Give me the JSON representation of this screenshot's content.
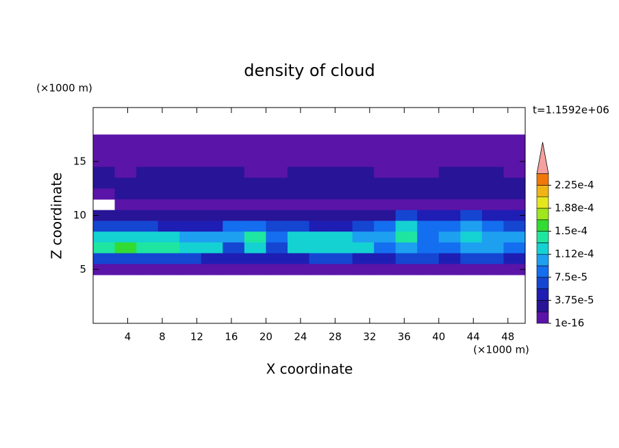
{
  "chart_data": {
    "type": "contour",
    "title": "density of cloud",
    "xlabel": "X coordinate",
    "ylabel": "Z coordinate",
    "xunit": "(×1000 m)",
    "yunit": "(×1000 m)",
    "annotation": "t=1.1592e+06",
    "xlim": [
      0,
      50
    ],
    "ylim": [
      0,
      20
    ],
    "xticks": [
      4,
      8,
      12,
      16,
      20,
      24,
      28,
      32,
      36,
      40,
      44,
      48
    ],
    "yticks": [
      5,
      10,
      15
    ],
    "x": [
      1.25,
      3.75,
      6.25,
      8.75,
      11.25,
      13.75,
      16.25,
      18.75,
      21.25,
      23.75,
      26.25,
      28.75,
      31.25,
      33.75,
      36.25,
      38.75,
      41.25,
      43.75,
      46.25,
      48.75
    ],
    "z": [
      17,
      16,
      15,
      14,
      13,
      12,
      11,
      10,
      9,
      8,
      7,
      6,
      5
    ],
    "values": [
      [
        5e-06,
        5e-06,
        5e-06,
        5e-06,
        5e-06,
        5e-06,
        5e-06,
        5e-06,
        5e-06,
        5e-06,
        5e-06,
        5e-06,
        5e-06,
        5e-06,
        5e-06,
        5e-06,
        5e-06,
        5e-06,
        5e-06,
        5e-06
      ],
      [
        1e-05,
        1e-05,
        1e-05,
        1e-05,
        1e-05,
        1e-05,
        1e-05,
        1e-05,
        1e-05,
        1e-05,
        1e-05,
        1e-05,
        1e-05,
        1e-05,
        1e-05,
        1e-05,
        1e-05,
        1e-05,
        1e-05,
        1e-05
      ],
      [
        1e-05,
        1e-05,
        1e-05,
        1e-05,
        1e-05,
        1e-05,
        1e-05,
        1e-05,
        1e-05,
        1e-05,
        1e-05,
        1e-05,
        1e-05,
        1e-05,
        1e-05,
        1e-05,
        1e-05,
        1e-05,
        1e-05,
        1e-05
      ],
      [
        2e-05,
        1e-05,
        2e-05,
        2e-05,
        2e-05,
        2e-05,
        2e-05,
        1e-05,
        1e-05,
        2e-05,
        2e-05,
        2e-05,
        2e-05,
        1e-05,
        1e-05,
        1e-05,
        2e-05,
        2e-05,
        2e-05,
        1e-05
      ],
      [
        2e-05,
        2e-05,
        2e-05,
        2e-05,
        2e-05,
        2e-05,
        2e-05,
        2e-05,
        2e-05,
        2e-05,
        2e-05,
        2e-05,
        2e-05,
        2e-05,
        2e-05,
        2e-05,
        2e-05,
        2e-05,
        2e-05,
        2e-05
      ],
      [
        1e-05,
        2e-05,
        2e-05,
        2e-05,
        2e-05,
        2e-05,
        2e-05,
        2e-05,
        2e-05,
        2e-05,
        2e-05,
        2e-05,
        2e-05,
        2e-05,
        2e-05,
        2e-05,
        2e-05,
        2e-05,
        2e-05,
        2e-05
      ],
      [
        null,
        1e-05,
        1e-05,
        1e-05,
        1e-05,
        1e-05,
        1e-05,
        1e-05,
        1e-05,
        1e-05,
        1e-05,
        1e-05,
        1e-05,
        1e-05,
        1e-05,
        1e-05,
        1e-05,
        1e-05,
        1e-05,
        1e-05
      ],
      [
        2e-05,
        2e-05,
        2e-05,
        2e-05,
        2e-05,
        2e-05,
        2e-05,
        3e-05,
        3e-05,
        2e-05,
        2e-05,
        3e-05,
        3e-05,
        3e-05,
        6e-05,
        4e-05,
        4e-05,
        6e-05,
        5e-05,
        4e-05
      ],
      [
        6e-05,
        6e-05,
        6e-05,
        5e-05,
        5e-05,
        5e-05,
        8e-05,
        9e-05,
        7e-05,
        6e-05,
        5e-05,
        5e-05,
        7e-05,
        8e-05,
        0.00012,
        8e-05,
        9e-05,
        0.0001,
        8e-05,
        7e-05
      ],
      [
        0.00012,
        0.00013,
        0.00012,
        0.00012,
        0.00011,
        0.0001,
        0.0001,
        0.00014,
        9e-05,
        0.00012,
        0.00013,
        0.00012,
        0.00011,
        0.00011,
        0.00014,
        9e-05,
        0.00011,
        0.00012,
        0.00011,
        0.0001
      ],
      [
        0.00014,
        0.00015,
        0.00014,
        0.00014,
        0.00013,
        0.00012,
        7e-05,
        0.00013,
        6e-05,
        0.00012,
        0.00013,
        0.00013,
        0.00012,
        8e-05,
        0.00011,
        8e-05,
        9e-05,
        0.00011,
        0.0001,
        9e-05
      ],
      [
        6e-05,
        7e-05,
        7e-05,
        6e-05,
        6e-05,
        5e-05,
        4e-05,
        5e-05,
        4e-05,
        5e-05,
        6e-05,
        6e-05,
        5e-05,
        5e-05,
        6e-05,
        6e-05,
        5e-05,
        6e-05,
        6e-05,
        5e-05
      ],
      [
        1e-05,
        1e-05,
        1e-05,
        1e-05,
        1e-05,
        1e-05,
        1e-05,
        1e-05,
        1e-05,
        1e-05,
        1e-05,
        1e-05,
        1e-05,
        1e-05,
        1e-05,
        1e-05,
        1e-05,
        1e-05,
        1e-05,
        1e-05
      ]
    ],
    "levels": [
      1e-16,
      1.875e-05,
      3.75e-05,
      5.625e-05,
      7.5e-05,
      9.375e-05,
      0.0001125,
      0.00013125,
      0.00015,
      0.00016875,
      0.0001875,
      0.00020625,
      0.000225,
      0.00024375
    ],
    "colors": [
      "#5a14a8",
      "#281496",
      "#1e1eb4",
      "#1446d2",
      "#146ef0",
      "#1ea0f0",
      "#14d2d2",
      "#1ee6a0",
      "#32dc32",
      "#a0e61e",
      "#e6e61e",
      "#f0b414",
      "#f0780a"
    ],
    "extend_color": "#f5a0a0",
    "colorbar_ticks": [
      {
        "value": 1e-16,
        "label": "1e-16"
      },
      {
        "value": 3.75e-05,
        "label": "3.75e-5"
      },
      {
        "value": 7.5e-05,
        "label": "7.5e-5"
      },
      {
        "value": 0.0001125,
        "label": "1.12e-4"
      },
      {
        "value": 0.00015,
        "label": "1.5e-4"
      },
      {
        "value": 0.0001875,
        "label": "1.88e-4"
      },
      {
        "value": 0.000225,
        "label": "2.25e-4"
      }
    ]
  }
}
